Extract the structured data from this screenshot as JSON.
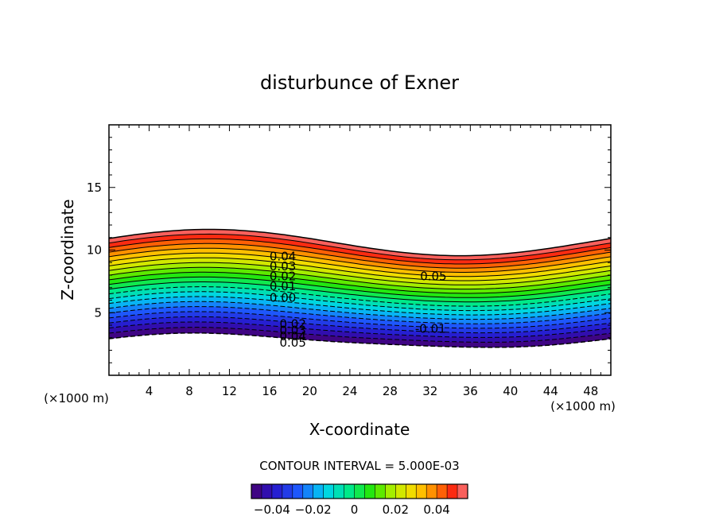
{
  "chart_data": {
    "type": "contour",
    "title": "disturbunce of Exner",
    "xlabel": "X-coordinate",
    "ylabel": "Z-coordinate",
    "x_unit_label_left": "(×1000 m)",
    "x_unit_label_right": "(×1000 m)",
    "xlim": [
      0,
      50
    ],
    "ylim": [
      0,
      20
    ],
    "xticks": [
      "4",
      "8",
      "12",
      "16",
      "20",
      "24",
      "28",
      "32",
      "36",
      "40",
      "44",
      "48"
    ],
    "xtick_values": [
      4,
      8,
      12,
      16,
      20,
      24,
      28,
      32,
      36,
      40,
      44,
      48
    ],
    "yticks": [
      "5",
      "10",
      "15"
    ],
    "ytick_values": [
      5,
      10,
      15
    ],
    "contour_interval_text": "CONTOUR INTERVAL = 5.000E-03",
    "contour_interval": 0.005,
    "value_range": [
      -0.05,
      0.055
    ],
    "contour_labels": [
      {
        "text": "0.04",
        "x": 16.0,
        "z": 9.5
      },
      {
        "text": "0.03",
        "x": 16.0,
        "z": 8.7
      },
      {
        "text": "0.02",
        "x": 16.0,
        "z": 7.9
      },
      {
        "text": "0.01",
        "x": 16.0,
        "z": 7.1
      },
      {
        "text": "0.00",
        "x": 16.0,
        "z": 6.2
      },
      {
        "text": "0.02",
        "x": 17.0,
        "z": 4.1
      },
      {
        "text": "0.03",
        "x": 17.0,
        "z": 3.6
      },
      {
        "text": "0.04",
        "x": 17.0,
        "z": 3.1
      },
      {
        "text": "0.05",
        "x": 17.0,
        "z": 2.6
      },
      {
        "text": "0.05",
        "x": 31.0,
        "z": 7.9
      },
      {
        "text": "-0.01",
        "x": 30.5,
        "z": 3.7
      }
    ],
    "colorbar": {
      "tick_labels": [
        "−0.04",
        "−0.02",
        "0",
        "0.02",
        "0.04"
      ],
      "tick_values": [
        -0.04,
        -0.02,
        0,
        0.02,
        0.04
      ]
    }
  }
}
